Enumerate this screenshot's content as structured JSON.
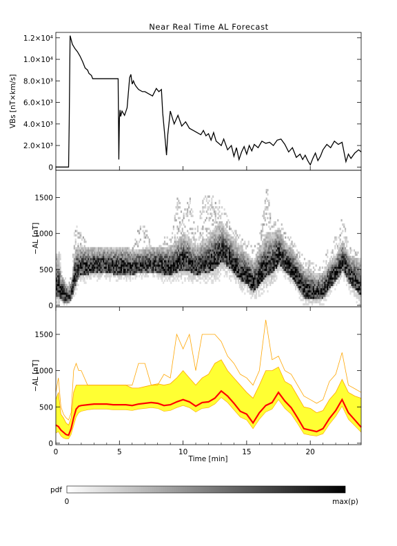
{
  "chart_data": [
    {
      "type": "line",
      "title": "Near Real Time AL Forecast",
      "ylabel": "VBs [nT×km/s]",
      "ylim": [
        -300,
        12500
      ],
      "xlim": [
        0,
        24
      ],
      "yticks": [
        0,
        2000,
        4000,
        6000,
        8000,
        10000,
        12000
      ],
      "ytick_labels": [
        "0",
        "2.0×10³",
        "4.0×10³",
        "6.0×10³",
        "8.0×10³",
        "1.0×10⁴",
        "1.2×10⁴"
      ],
      "series": [
        {
          "color": "#000000",
          "x": [
            0,
            1.0,
            1.05,
            1.12,
            1.3,
            1.5,
            1.7,
            1.9,
            2.1,
            2.3,
            2.5,
            2.6,
            2.8,
            2.9,
            3.2,
            4.0,
            4.9,
            4.95,
            5.0,
            5.05,
            5.1,
            5.2,
            5.4,
            5.6,
            5.8,
            5.9,
            6.0,
            6.1,
            6.2,
            6.3,
            6.5,
            6.8,
            7.0,
            7.3,
            7.6,
            7.9,
            8.1,
            8.3,
            8.4,
            8.6,
            8.7,
            8.8,
            9.0,
            9.3,
            9.6,
            9.9,
            10.2,
            10.5,
            10.8,
            11.1,
            11.4,
            11.6,
            11.8,
            12.0,
            12.2,
            12.4,
            12.6,
            12.8,
            13.0,
            13.2,
            13.5,
            13.8,
            14.0,
            14.2,
            14.4,
            14.6,
            14.8,
            15.0,
            15.2,
            15.4,
            15.6,
            15.9,
            16.2,
            16.5,
            16.8,
            17.1,
            17.4,
            17.7,
            18.0,
            18.3,
            18.6,
            18.9,
            19.2,
            19.4,
            19.6,
            19.8,
            20.0,
            20.2,
            20.4,
            20.6,
            20.8,
            21.0,
            21.3,
            21.6,
            21.9,
            22.2,
            22.5,
            22.8,
            23.0,
            23.2,
            23.5,
            23.8,
            24.0
          ],
          "y": [
            0,
            0,
            4000,
            12200,
            11400,
            11000,
            10700,
            10300,
            9800,
            9200,
            9000,
            8700,
            8500,
            8200,
            8200,
            8200,
            8200,
            700,
            4500,
            5300,
            4700,
            5200,
            4800,
            5500,
            8300,
            8600,
            7700,
            8000,
            7700,
            7500,
            7200,
            7000,
            7000,
            6800,
            6600,
            7300,
            7000,
            7200,
            5000,
            2500,
            1100,
            3000,
            5200,
            4000,
            4800,
            3800,
            4200,
            3600,
            3400,
            3200,
            3000,
            3400,
            2900,
            3100,
            2500,
            3200,
            2400,
            2200,
            2000,
            2600,
            1600,
            2000,
            1000,
            1800,
            700,
            1400,
            1900,
            1200,
            2000,
            1500,
            2100,
            1800,
            2400,
            2200,
            2300,
            2000,
            2500,
            2600,
            2100,
            1400,
            1800,
            900,
            1200,
            700,
            1100,
            600,
            200,
            800,
            1300,
            600,
            1000,
            1600,
            2100,
            1800,
            2400,
            2100,
            2300,
            500,
            1200,
            800,
            1300,
            1600,
            1400
          ]
        }
      ]
    },
    {
      "type": "heatmap",
      "ylabel": "−AL [nT]",
      "xlim": [
        0,
        24
      ],
      "ylim": [
        -20,
        1880
      ],
      "yticks": [
        0,
        500,
        1000,
        1500
      ],
      "ytick_labels": [
        "0",
        "500",
        "1000",
        "1500"
      ]
    },
    {
      "type": "area",
      "ylabel": "−AL [nT]",
      "xlabel": "Time [min]",
      "xlim": [
        0,
        24
      ],
      "ylim": [
        -20,
        1880
      ],
      "xticks": [
        0,
        5,
        10,
        15,
        20
      ],
      "xtick_labels": [
        "0",
        "5",
        "10",
        "15",
        "20"
      ],
      "yticks": [
        0,
        500,
        1000,
        1500
      ],
      "ytick_labels": [
        "0",
        "500",
        "1000",
        "1500"
      ],
      "x": [
        0,
        0.2,
        0.4,
        0.6,
        0.8,
        1.0,
        1.2,
        1.4,
        1.6,
        1.8,
        2.0,
        2.5,
        3.0,
        3.5,
        4.0,
        4.5,
        5.0,
        5.5,
        6.0,
        6.5,
        7.0,
        7.5,
        8.0,
        8.5,
        9.0,
        9.5,
        10.0,
        10.5,
        11.0,
        11.5,
        12.0,
        12.5,
        13.0,
        13.5,
        14.0,
        14.5,
        15.0,
        15.5,
        16.0,
        16.5,
        17.0,
        17.5,
        18.0,
        18.5,
        19.0,
        19.5,
        20.0,
        20.5,
        21.0,
        21.5,
        22.0,
        22.5,
        23.0,
        23.5,
        24.0
      ],
      "median": [
        250,
        230,
        180,
        150,
        120,
        110,
        200,
        350,
        470,
        510,
        520,
        530,
        540,
        540,
        540,
        530,
        530,
        530,
        520,
        540,
        550,
        560,
        550,
        520,
        530,
        570,
        600,
        570,
        510,
        560,
        570,
        620,
        720,
        650,
        550,
        440,
        400,
        280,
        420,
        520,
        560,
        700,
        580,
        490,
        350,
        200,
        180,
        160,
        200,
        340,
        450,
        600,
        420,
        320,
        220
      ],
      "lower": [
        140,
        160,
        100,
        70,
        60,
        60,
        120,
        240,
        360,
        420,
        440,
        460,
        470,
        470,
        470,
        460,
        460,
        460,
        450,
        470,
        480,
        490,
        480,
        440,
        450,
        490,
        520,
        490,
        430,
        480,
        490,
        540,
        630,
        560,
        460,
        360,
        320,
        200,
        330,
        430,
        470,
        600,
        480,
        400,
        270,
        130,
        110,
        100,
        130,
        260,
        370,
        510,
        330,
        240,
        150
      ],
      "upper": [
        600,
        700,
        400,
        350,
        280,
        250,
        350,
        700,
        800,
        800,
        800,
        800,
        800,
        800,
        800,
        800,
        800,
        800,
        760,
        760,
        780,
        800,
        820,
        800,
        820,
        900,
        1000,
        900,
        800,
        900,
        950,
        1100,
        1150,
        1000,
        900,
        800,
        700,
        620,
        800,
        1000,
        1000,
        1050,
        850,
        800,
        650,
        500,
        480,
        420,
        450,
        600,
        700,
        880,
        700,
        650,
        620
      ],
      "max_envelope": [
        700,
        900,
        500,
        400,
        350,
        320,
        420,
        1000,
        1100,
        1000,
        1000,
        800,
        800,
        800,
        800,
        800,
        800,
        800,
        800,
        1100,
        1100,
        800,
        800,
        950,
        900,
        1500,
        1300,
        1500,
        1000,
        1500,
        1500,
        1500,
        1400,
        1200,
        1100,
        950,
        900,
        800,
        1000,
        1700,
        1150,
        1200,
        1000,
        950,
        800,
        650,
        600,
        550,
        600,
        850,
        950,
        1250,
        800,
        750,
        700
      ],
      "colors": {
        "band": "#ffff33",
        "median": "#ff0000",
        "envelope": "#ffa500"
      }
    }
  ],
  "colorbar": {
    "label": "pdf",
    "min_label": "0",
    "max_label": "max(p)"
  }
}
